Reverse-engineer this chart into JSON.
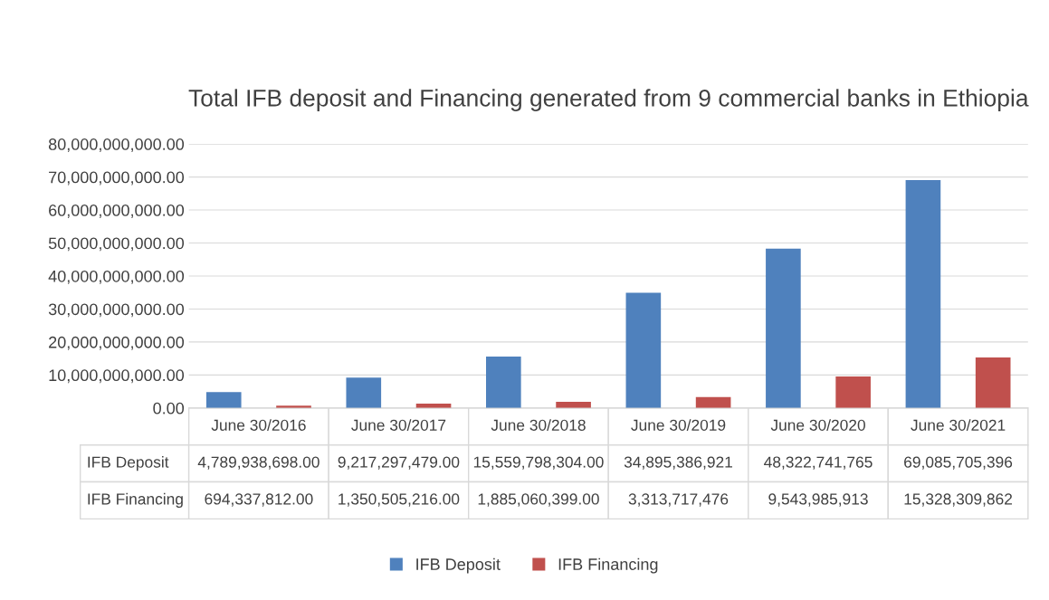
{
  "chart_data": {
    "type": "bar",
    "title": "Total IFB deposit and Financing generated from 9 commercial banks in Ethiopia",
    "categories": [
      "June 30/2016",
      "June 30/2017",
      "June 30/2018",
      "June 30/2019",
      "June 30/2020",
      "June 30/2021"
    ],
    "series": [
      {
        "name": "IFB Deposit",
        "color": "#4f81bd",
        "values": [
          4789938698.0,
          9217297479.0,
          15559798304.0,
          34895386921,
          48322741765,
          69085705396
        ],
        "value_labels": [
          "4,789,938,698.00",
          "9,217,297,479.00",
          "15,559,798,304.00",
          "34,895,386,921",
          "48,322,741,765",
          "69,085,705,396"
        ]
      },
      {
        "name": "IFB Financing",
        "color": "#c0504d",
        "values": [
          694337812.0,
          1350505216.0,
          1885060399.0,
          3313717476,
          9543985913,
          15328309862
        ],
        "value_labels": [
          "694,337,812.00",
          "1,350,505,216.00",
          "1,885,060,399.00",
          "3,313,717,476",
          "9,543,985,913",
          "15,328,309,862"
        ]
      }
    ],
    "ylim": [
      0,
      80000000000
    ],
    "yticks": [
      {
        "value": 0,
        "label": "0.00"
      },
      {
        "value": 10000000000,
        "label": "10,000,000,000.00"
      },
      {
        "value": 20000000000,
        "label": "20,000,000,000.00"
      },
      {
        "value": 30000000000,
        "label": "30,000,000,000.00"
      },
      {
        "value": 40000000000,
        "label": "40,000,000,000.00"
      },
      {
        "value": 50000000000,
        "label": "50,000,000,000.00"
      },
      {
        "value": 60000000000,
        "label": "60,000,000,000.00"
      },
      {
        "value": 70000000000,
        "label": "70,000,000,000.00"
      },
      {
        "value": 80000000000,
        "label": "80,000,000,000.00"
      }
    ],
    "grid": "y",
    "legend": "bottom",
    "tick_labels": "y"
  }
}
